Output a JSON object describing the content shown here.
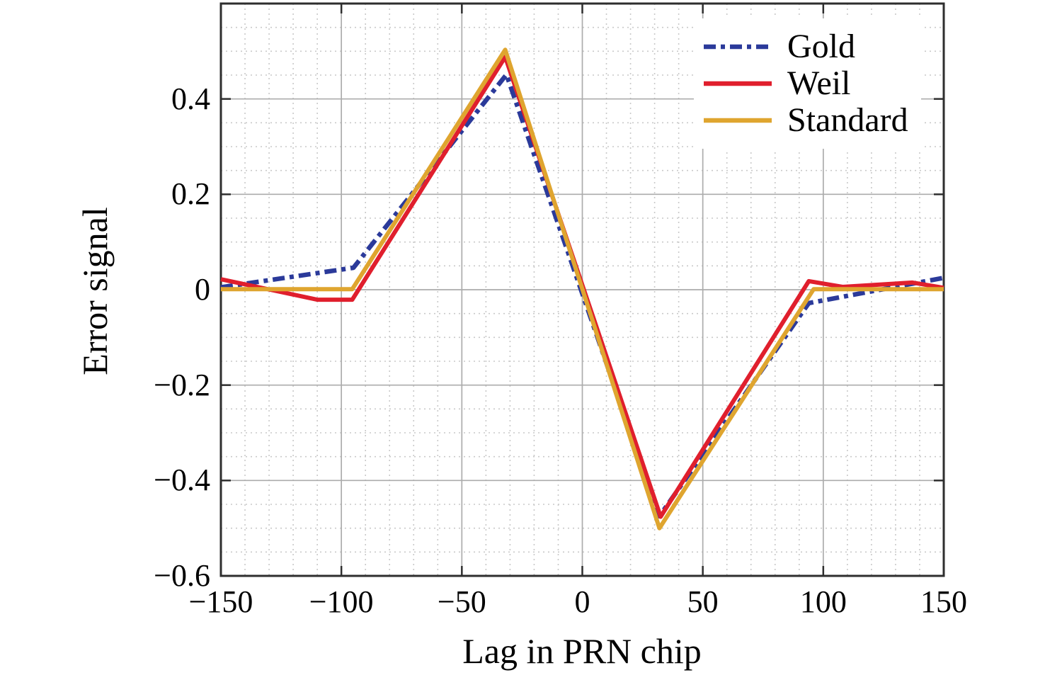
{
  "chart_data": {
    "type": "line",
    "title": "",
    "xlabel": "Lag in PRN chip",
    "ylabel": "Error signal",
    "xlim": [
      -150,
      150
    ],
    "ylim": [
      -0.6,
      0.6
    ],
    "x_major_ticks": [
      -150,
      -100,
      -50,
      0,
      50,
      100,
      150
    ],
    "x_tick_labels": [
      "−150",
      "−100",
      "−50",
      "0",
      "50",
      "100",
      "150"
    ],
    "y_major_ticks": [
      0.4,
      0.2,
      0,
      -0.2,
      -0.4,
      -0.6
    ],
    "y_tick_labels": [
      "0.4",
      "0.2",
      "0",
      "−0.2",
      "−0.4",
      "−0.6"
    ],
    "grid": "major-solid-minor-dotted",
    "x_minor_step": 10,
    "y_minor_step": 0.05,
    "legend_position": "top-right",
    "series": [
      {
        "name": "Gold",
        "color": "#2b3a9a",
        "style": "dash-dot",
        "points": [
          [
            -150,
            0.005
          ],
          [
            -95,
            0.046
          ],
          [
            -31.5,
            0.451
          ],
          [
            32,
            -0.475
          ],
          [
            94,
            -0.028
          ],
          [
            150,
            0.025
          ]
        ]
      },
      {
        "name": "Weil",
        "color": "#e01f2d",
        "style": "solid",
        "points": [
          [
            -150,
            0.022
          ],
          [
            -110,
            -0.021
          ],
          [
            -95.5,
            -0.021
          ],
          [
            -32,
            0.488
          ],
          [
            32.5,
            -0.476
          ],
          [
            94,
            0.018
          ],
          [
            108,
            0.006
          ],
          [
            137,
            0.015
          ],
          [
            150,
            0.004
          ]
        ]
      },
      {
        "name": "Standard",
        "color": "#dfa52f",
        "style": "solid",
        "points": [
          [
            -150,
            0.001
          ],
          [
            -95.5,
            0.001
          ],
          [
            -32,
            0.503
          ],
          [
            32,
            -0.5
          ],
          [
            96,
            0.001
          ],
          [
            150,
            0.001
          ]
        ]
      }
    ]
  },
  "colors": {
    "major_grid": "#acacac",
    "minor_grid": "#c9c9c9",
    "axes_border": "#2e2e2e",
    "tick_mark": "#2e2e2e",
    "text": "#000000",
    "background": "#ffffff"
  }
}
